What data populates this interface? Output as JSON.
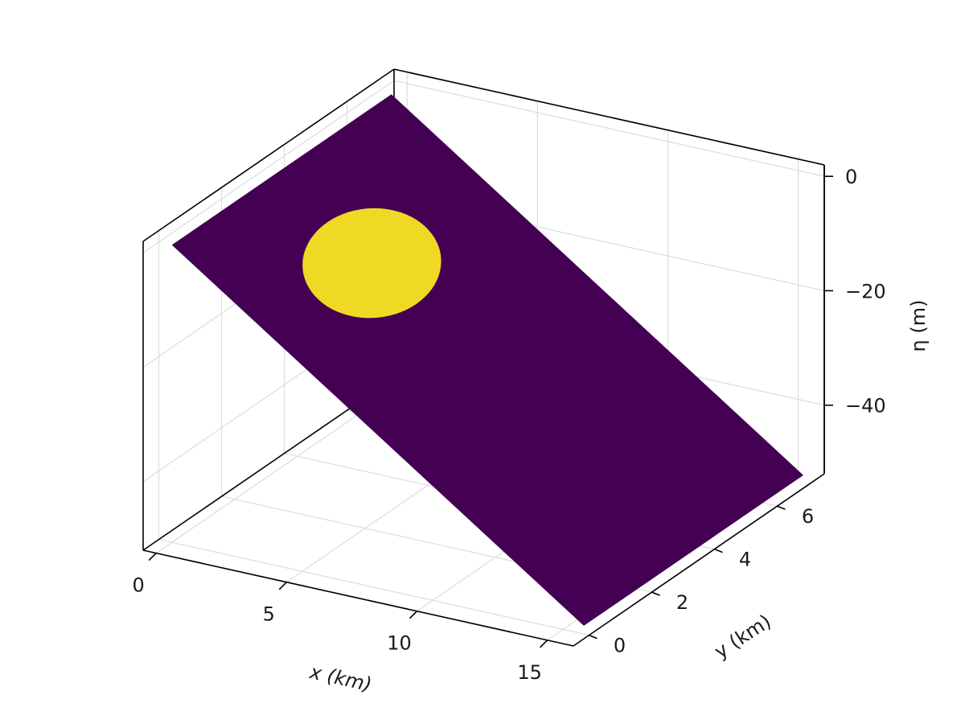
{
  "chart_data": {
    "type": "surface",
    "xlabel": "x (km)",
    "ylabel": "y (km)",
    "zlabel": "η (m)",
    "xlim": [
      -0.5,
      16
    ],
    "ylim": [
      -0.5,
      7.5
    ],
    "zlim": [
      -52,
      2
    ],
    "x_ticks": [
      0,
      5,
      10,
      15
    ],
    "y_ticks": [
      0,
      2,
      4,
      6
    ],
    "z_ticks": [
      0,
      -20,
      -40
    ],
    "x_tick_labels": [
      "0",
      "5",
      "10",
      "15"
    ],
    "y_tick_labels": [
      "0",
      "2",
      "4",
      "6"
    ],
    "z_tick_labels": [
      "0",
      "−20",
      "−40"
    ],
    "grid": true,
    "colormap": "viridis",
    "surface": {
      "x_range": [
        0,
        15.8
      ],
      "y_range": [
        0,
        7.0
      ],
      "plane_z_at_x0": 0,
      "plane_slope_m_per_km": -3.2,
      "base_color": "#440154"
    },
    "circular_region": {
      "center_x": 3.7,
      "center_y": 3.3,
      "radius": 1.7,
      "color": "#f0d924"
    }
  }
}
